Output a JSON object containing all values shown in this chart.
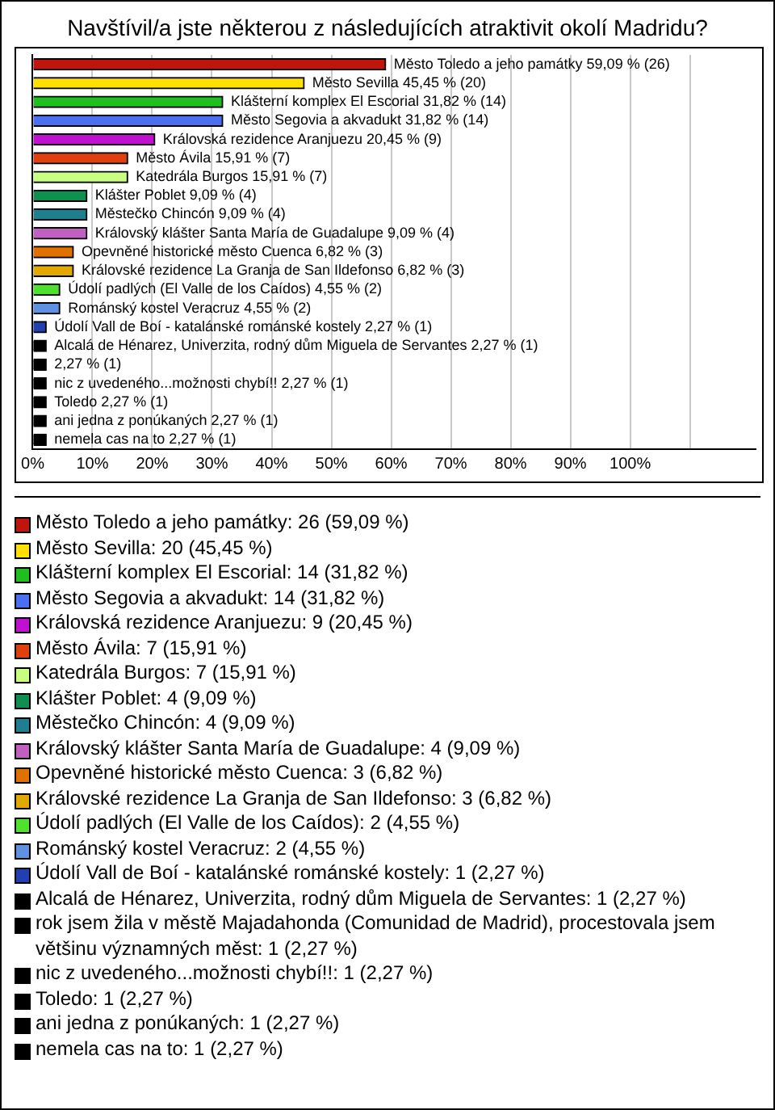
{
  "chart_data": {
    "type": "bar",
    "orientation": "horizontal",
    "title": "Navštívil/a jste některou z následujících atraktivit okolí Madridu?",
    "categories": [
      "Město Toledo a jeho památky",
      "Město Sevilla",
      "Klášterní komplex El Escorial",
      "Město Segovia a akvadukt",
      "Královská rezidence Aranjuezu",
      "Město Ávila",
      "Katedrála Burgos",
      "Klášter Poblet",
      "Městečko Chincón",
      "Královský klášter Santa María de Guadalupe",
      "Opevněné historické město Cuenca",
      "Královské rezidence La Granja de San Ildefonso",
      "Údolí padlých (El Valle de los Caídos)",
      "Románský kostel Veracruz",
      "Údolí Vall de Boí - katalánské románské kostely",
      "Alcalá de Hénarez, Univerzita, rodný dům Miguela de Servantes",
      null,
      "nic z uvedeného...možnosti chybí!!",
      "Toledo",
      "ani jedna z ponúkaných",
      "nemela cas na to"
    ],
    "values": [
      59.09,
      45.45,
      31.82,
      31.82,
      20.45,
      15.91,
      15.91,
      9.09,
      9.09,
      9.09,
      6.82,
      6.82,
      4.55,
      4.55,
      2.27,
      2.27,
      2.27,
      2.27,
      2.27,
      2.27,
      2.27
    ],
    "colors": [
      "#c0140c",
      "#ffe000",
      "#1fbf1f",
      "#4a6ff0",
      "#c010d0",
      "#e04010",
      "#c8ff80",
      "#109050",
      "#207f8f",
      "#c060c0",
      "#e07000",
      "#e0a800",
      "#50e030",
      "#6090e0",
      "#2040b0",
      "#000000",
      "#000000",
      "#000000",
      "#000000",
      "#000000",
      "#000000"
    ],
    "value_labels": [
      "59,09 % (26)",
      "45,45 % (20)",
      "31,82 % (14)",
      "31,82 % (14)",
      "20,45 % (9)",
      "15,91 % (7)",
      "15,91 % (7)",
      "9,09 % (4)",
      "9,09 % (4)",
      "9,09 % (4)",
      "6,82 % (3)",
      "6,82 % (3)",
      "4,55 % (2)",
      "4,55 % (2)",
      "2,27 % (1)",
      "2,27 % (1)",
      "2,27 % (1)",
      "2,27 % (1)",
      "2,27 % (1)",
      "2,27 % (1)",
      "2,27 % (1)"
    ],
    "annotations": [
      "Město Toledo a jeho památky: 26 (59,09 %)",
      "Město Sevilla: 20 (45,45 %)",
      "Klášterní komplex El Escorial: 14 (31,82 %)",
      "Město Segovia a akvadukt: 14 (31,82 %)",
      "Královská rezidence Aranjuezu: 9 (20,45 %)",
      "Město Ávila: 7 (15,91 %)",
      "Katedrála Burgos: 7 (15,91 %)",
      "Klášter Poblet: 4 (9,09 %)",
      "Městečko Chincón: 4 (9,09 %)",
      "Královský klášter Santa María de Guadalupe: 4 (9,09 %)",
      "Opevněné historické město Cuenca: 3 (6,82 %)",
      "Královské rezidence La Granja de San Ildefonso: 3 (6,82 %)",
      "Údolí padlých (El Valle de los Caídos): 2 (4,55 %)",
      "Románský kostel Veracruz: 2 (4,55 %)",
      "Údolí Vall de Boí - katalánské románské kostely: 1 (2,27 %)",
      "Alcalá de Hénarez, Univerzita, rodný dům Miguela de Servantes: 1 (2,27 %)",
      "rok jsem žila v městě Majadahonda (Comunidad de Madrid), procestovala jsem většinu významných měst: 1 (2,27 %)",
      "nic z uvedeného...možnosti chybí!!: 1 (2,27 %)",
      "Toledo: 1 (2,27 %)",
      "ani jedna z ponúkaných: 1 (2,27 %)",
      "nemela cas na to: 1 (2,27 %)"
    ],
    "xlim": [
      0,
      121
    ],
    "xticks": [
      {
        "value": 0,
        "label": "0%"
      },
      {
        "value": 10,
        "label": "10%"
      },
      {
        "value": 20,
        "label": "20%"
      },
      {
        "value": 30,
        "label": "30%"
      },
      {
        "value": 40,
        "label": "40%"
      },
      {
        "value": 50,
        "label": "50%"
      },
      {
        "value": 60,
        "label": "60%"
      },
      {
        "value": 70,
        "label": "70%"
      },
      {
        "value": 80,
        "label": "80%"
      },
      {
        "value": 90,
        "label": "90%"
      },
      {
        "value": 100,
        "label": "100%"
      },
      {
        "value": 110,
        "label": null
      }
    ],
    "tick_labels": "x",
    "grid": "x"
  }
}
